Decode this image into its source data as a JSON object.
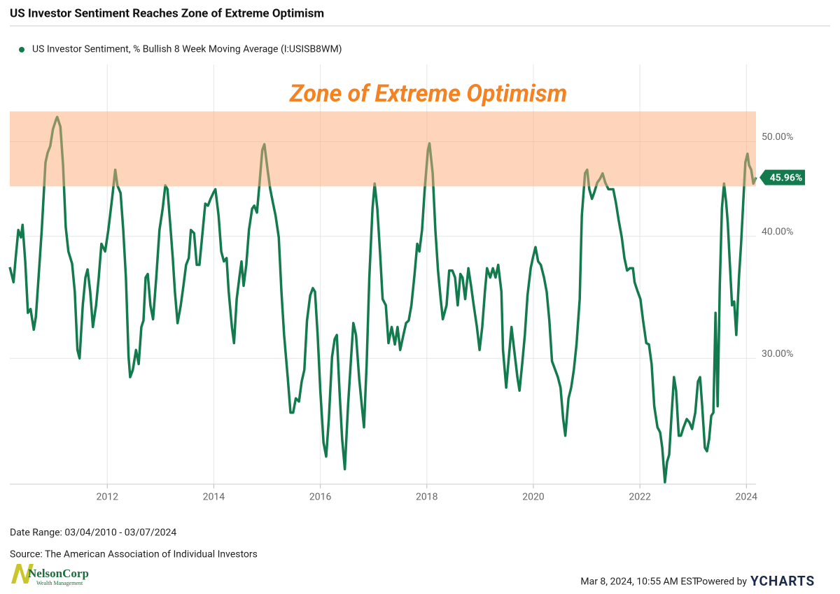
{
  "chart_data": {
    "type": "line",
    "title": "US Investor Sentiment Reaches Zone of Extreme Optimism",
    "annotation": "Zone of Extreme Optimism",
    "band": {
      "from": 45,
      "to": 53.7,
      "color": "rgba(253,170,120,0.5)"
    },
    "log_scale": true,
    "grid": true,
    "legend": "top-left",
    "ylim": [
      22.3,
      60
    ],
    "yticks": [
      {
        "value": 30,
        "label": "30.00%"
      },
      {
        "value": 40,
        "label": "40.00%"
      },
      {
        "value": 50,
        "label": "50.00%"
      }
    ],
    "xlim": [
      2010.17,
      2024.18
    ],
    "xticks": [
      2012,
      2014,
      2016,
      2018,
      2020,
      2022,
      2024
    ],
    "x": [
      2010.17,
      2010.24,
      2010.28,
      2010.33,
      2010.38,
      2010.41,
      2010.46,
      2010.51,
      2010.56,
      2010.62,
      2010.66,
      2010.71,
      2010.77,
      2010.84,
      2010.88,
      2010.93,
      2010.98,
      2011.04,
      2011.06,
      2011.12,
      2011.17,
      2011.22,
      2011.27,
      2011.34,
      2011.39,
      2011.44,
      2011.48,
      2011.54,
      2011.59,
      2011.63,
      2011.68,
      2011.73,
      2011.79,
      2011.84,
      2011.89,
      2011.96,
      2012.02,
      2012.09,
      2012.15,
      2012.19,
      2012.25,
      2012.3,
      2012.35,
      2012.4,
      2012.43,
      2012.48,
      2012.54,
      2012.59,
      2012.64,
      2012.68,
      2012.72,
      2012.76,
      2012.81,
      2012.86,
      2012.92,
      2012.98,
      2013.04,
      2013.09,
      2013.13,
      2013.18,
      2013.23,
      2013.27,
      2013.32,
      2013.38,
      2013.43,
      2013.48,
      2013.53,
      2013.57,
      2013.63,
      2013.68,
      2013.73,
      2013.78,
      2013.84,
      2013.89,
      2013.94,
      2013.99,
      2014.03,
      2014.09,
      2014.14,
      2014.19,
      2014.24,
      2014.28,
      2014.34,
      2014.38,
      2014.43,
      2014.48,
      2014.52,
      2014.56,
      2014.61,
      2014.66,
      2014.72,
      2014.76,
      2014.81,
      2014.86,
      2014.91,
      2014.95,
      2015.01,
      2015.06,
      2015.11,
      2015.16,
      2015.22,
      2015.27,
      2015.32,
      2015.39,
      2015.44,
      2015.49,
      2015.54,
      2015.6,
      2015.65,
      2015.7,
      2015.75,
      2015.81,
      2015.86,
      2015.9,
      2015.95,
      2016.0,
      2016.06,
      2016.11,
      2016.16,
      2016.22,
      2016.27,
      2016.31,
      2016.36,
      2016.41,
      2016.46,
      2016.52,
      2016.57,
      2016.62,
      2016.67,
      2016.73,
      2016.78,
      2016.82,
      2016.87,
      2016.92,
      2016.98,
      2017.02,
      2017.07,
      2017.12,
      2017.17,
      2017.23,
      2017.28,
      2017.34,
      2017.4,
      2017.45,
      2017.5,
      2017.56,
      2017.61,
      2017.66,
      2017.71,
      2017.77,
      2017.82,
      2017.86,
      2017.91,
      2017.96,
      2018.02,
      2018.05,
      2018.11,
      2018.16,
      2018.21,
      2018.26,
      2018.3,
      2018.37,
      2018.42,
      2018.48,
      2018.53,
      2018.58,
      2018.63,
      2018.67,
      2018.72,
      2018.78,
      2018.83,
      2018.88,
      2018.94,
      2018.99,
      2019.04,
      2019.09,
      2019.13,
      2019.19,
      2019.24,
      2019.29,
      2019.34,
      2019.4,
      2019.43,
      2019.49,
      2019.54,
      2019.59,
      2019.64,
      2019.7,
      2019.74,
      2019.79,
      2019.84,
      2019.89,
      2019.95,
      2019.99,
      2020.04,
      2020.09,
      2020.14,
      2020.2,
      2020.25,
      2020.3,
      2020.35,
      2020.41,
      2020.46,
      2020.51,
      2020.56,
      2020.6,
      2020.66,
      2020.71,
      2020.76,
      2020.81,
      2020.87,
      2020.91,
      2020.97,
      2021.01,
      2021.05,
      2021.1,
      2021.14,
      2021.2,
      2021.25,
      2021.3,
      2021.35,
      2021.41,
      2021.46,
      2021.5,
      2021.55,
      2021.6,
      2021.66,
      2021.71,
      2021.76,
      2021.81,
      2021.87,
      2021.9,
      2021.96,
      2022.01,
      2022.06,
      2022.12,
      2022.17,
      2022.22,
      2022.27,
      2022.33,
      2022.38,
      2022.42,
      2022.47,
      2022.51,
      2022.55,
      2022.59,
      2022.64,
      2022.68,
      2022.73,
      2022.77,
      2022.82,
      2022.88,
      2022.93,
      2022.98,
      2023.04,
      2023.09,
      2023.13,
      2023.17,
      2023.22,
      2023.26,
      2023.3,
      2023.34,
      2023.38,
      2023.42,
      2023.46,
      2023.5,
      2023.54,
      2023.58,
      2023.62,
      2023.65,
      2023.69,
      2023.73,
      2023.77,
      2023.81,
      2023.86,
      2023.9,
      2023.94,
      2023.98,
      2024.02,
      2024.05,
      2024.09,
      2024.13,
      2024.18
    ],
    "series": [
      {
        "name": "US Investor Sentiment, % Bullish 8 Week Moving Average (I:USISB8WM)",
        "color": "#137a4e",
        "values": [
          37.2,
          35.9,
          38.0,
          40.6,
          39.9,
          41.1,
          37.7,
          33.4,
          33.7,
          32.1,
          33.1,
          36.3,
          40.6,
          47.6,
          48.7,
          49.5,
          51.5,
          52.7,
          53.0,
          51.8,
          47.3,
          40.9,
          38.6,
          37.5,
          35.1,
          30.6,
          30.0,
          34.0,
          36.3,
          37.0,
          35.1,
          32.3,
          34.0,
          36.3,
          39.3,
          38.6,
          40.6,
          43.7,
          46.8,
          45.1,
          44.3,
          40.6,
          36.3,
          30.1,
          28.7,
          29.2,
          30.6,
          29.6,
          32.3,
          32.8,
          36.3,
          36.6,
          34.0,
          32.9,
          36.3,
          40.6,
          42.7,
          45.1,
          44.7,
          41.3,
          38.0,
          35.1,
          32.6,
          34.0,
          35.6,
          37.4,
          38.0,
          40.6,
          40.3,
          37.4,
          37.4,
          39.9,
          43.2,
          43.0,
          43.7,
          44.3,
          44.7,
          42.0,
          38.6,
          37.7,
          38.0,
          35.1,
          32.3,
          31.1,
          34.5,
          36.3,
          37.7,
          35.6,
          37.4,
          40.6,
          42.7,
          43.0,
          42.3,
          45.4,
          49.0,
          49.7,
          46.8,
          44.7,
          43.3,
          42.0,
          39.9,
          35.1,
          31.7,
          28.6,
          26.4,
          26.4,
          27.3,
          27.1,
          28.4,
          29.2,
          32.8,
          34.8,
          35.4,
          35.1,
          31.7,
          27.8,
          24.6,
          23.8,
          26.0,
          30.1,
          31.4,
          31.7,
          27.8,
          24.8,
          23.1,
          26.8,
          29.6,
          32.6,
          31.7,
          28.6,
          26.8,
          25.5,
          29.6,
          36.3,
          42.7,
          45.3,
          42.7,
          38.6,
          34.5,
          34.0,
          31.1,
          32.3,
          31.0,
          32.3,
          30.6,
          31.7,
          32.6,
          32.8,
          34.0,
          36.6,
          39.3,
          38.6,
          40.6,
          44.7,
          49.0,
          49.8,
          46.4,
          40.6,
          36.9,
          34.5,
          32.9,
          34.0,
          36.9,
          36.9,
          36.3,
          34.0,
          36.6,
          36.3,
          34.5,
          37.1,
          35.6,
          34.0,
          32.3,
          30.6,
          32.3,
          35.1,
          37.1,
          36.3,
          37.1,
          36.3,
          37.4,
          35.1,
          30.6,
          28.0,
          30.1,
          32.3,
          30.6,
          28.7,
          27.8,
          29.6,
          31.7,
          34.8,
          37.1,
          38.0,
          39.0,
          37.7,
          37.4,
          36.3,
          35.1,
          32.8,
          29.8,
          29.2,
          28.7,
          28.0,
          26.0,
          25.0,
          27.3,
          28.0,
          29.2,
          31.0,
          34.5,
          42.0,
          46.4,
          46.8,
          44.7,
          43.7,
          44.3,
          45.4,
          45.8,
          46.4,
          45.4,
          44.7,
          44.7,
          44.7,
          43.3,
          41.6,
          39.9,
          38.0,
          36.9,
          37.1,
          37.1,
          35.9,
          35.1,
          34.5,
          32.8,
          31.1,
          31.0,
          29.6,
          26.8,
          25.5,
          25.2,
          24.3,
          22.4,
          23.5,
          23.9,
          26.0,
          28.7,
          27.8,
          25.0,
          25.0,
          25.5,
          26.0,
          25.8,
          25.4,
          26.4,
          28.4,
          28.7,
          26.8,
          24.3,
          24.1,
          24.8,
          26.2,
          26.4,
          33.4,
          26.8,
          35.6,
          42.7,
          45.3,
          43.3,
          41.3,
          37.4,
          34.0,
          34.3,
          31.7,
          36.3,
          39.3,
          43.3,
          47.6,
          48.6,
          47.3,
          46.8,
          45.3,
          45.96
        ],
        "value_labels": {
          "282": "45.96%"
        }
      }
    ],
    "date_range": "Date Range: 03/04/2010 - 03/07/2024",
    "source": "Source: The American Association of Individual Investors",
    "timestamp": "Mar 8, 2024, 10:55 AM EST",
    "powered_by": "Powered by",
    "brand": "YCHARTS",
    "logo": {
      "name": "NelsonCorp",
      "tagline": "Wealth Management"
    }
  }
}
